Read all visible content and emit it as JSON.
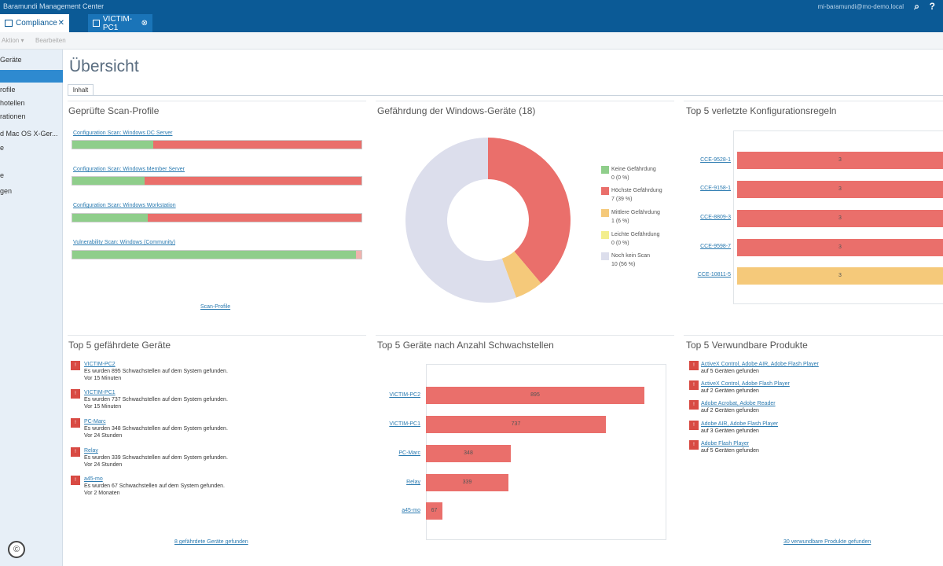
{
  "app": {
    "title": "Baramundi Management Center",
    "user": "mi-baramundi@mo-demo.local"
  },
  "tabs": [
    {
      "label": "Compliance",
      "close": "✕"
    },
    {
      "label": "VICTIM-PC1",
      "close": "⊗"
    }
  ],
  "toolbar": {
    "item1": "Aktion ▾",
    "item2": "Bearbeiten"
  },
  "sidebar": {
    "items": [
      "Geräte",
      "",
      "rofile",
      "hotellen",
      "rationen",
      "d Mac OS X-Ger...",
      "e",
      "",
      "e",
      "gen"
    ],
    "active_index": 1
  },
  "page": {
    "title": "Übersicht",
    "subtab": "Inhalt"
  },
  "scan_profiles": {
    "title": "Geprüfte Scan-Profile",
    "items": [
      {
        "name": "Configuration Scan: Windows DC Server",
        "ok_pct": 28,
        "bad_pct": 72,
        "nil_pct": 0
      },
      {
        "name": "Configuration Scan: Windows Member Server",
        "ok_pct": 25,
        "bad_pct": 75,
        "nil_pct": 0
      },
      {
        "name": "Configuration Scan: Windows Workstation",
        "ok_pct": 26,
        "bad_pct": 74,
        "nil_pct": 0
      },
      {
        "name": "Vulnerability Scan: Windows (Community)",
        "ok_pct": 98,
        "bad_pct": 0,
        "nil_pct": 2
      }
    ],
    "footer": "Scan-Profile"
  },
  "threat": {
    "title": "Gefährdung der Windows-Geräte (18)",
    "legend": [
      {
        "label": "Keine Gefährdung",
        "value": "0 (0 %)",
        "color": "#8fce8b"
      },
      {
        "label": "Höchste Gefährdung",
        "value": "7 (39 %)",
        "color": "#ea6f6b"
      },
      {
        "label": "Mittlere Gefährdung",
        "value": "1 (6 %)",
        "color": "#f5c97a"
      },
      {
        "label": "Leichte Gefährdung",
        "value": "0 (0 %)",
        "color": "#f3ee8d"
      },
      {
        "label": "Noch kein Scan",
        "value": "10 (56 %)",
        "color": "#dcdeec"
      }
    ]
  },
  "rules": {
    "title": "Top 5 verletzte Konfigurationsregeln",
    "items": [
      {
        "id": "CCE-9528-1",
        "value": "3",
        "color": "#ea6f6b"
      },
      {
        "id": "CCE-9158-1",
        "value": "3",
        "color": "#ea6f6b"
      },
      {
        "id": "CCE-8809-3",
        "value": "3",
        "color": "#ea6f6b"
      },
      {
        "id": "CCE-9598-7",
        "value": "3",
        "color": "#ea6f6b"
      },
      {
        "id": "CCE-10811-5",
        "value": "3",
        "color": "#f5c97a"
      }
    ]
  },
  "devices": {
    "title": "Top 5 gefährdete Geräte",
    "items": [
      {
        "name": "VICTIM-PC2",
        "desc": "Es wurden 895 Schwachstellen auf dem System gefunden.",
        "time": "Vor 15 Minuten"
      },
      {
        "name": "VICTIM-PC1",
        "desc": "Es wurden 737 Schwachstellen auf dem System gefunden.",
        "time": "Vor 15 Minuten"
      },
      {
        "name": "PC-Marc",
        "desc": "Es wurden 348 Schwachstellen auf dem System gefunden.",
        "time": "Vor 24 Stunden"
      },
      {
        "name": "Relay",
        "desc": "Es wurden 339 Schwachstellen auf dem System gefunden.",
        "time": "Vor 24 Stunden"
      },
      {
        "name": "a45-mo",
        "desc": "Es wurden 67 Schwachstellen auf dem System gefunden.",
        "time": "Vor 2 Monaten"
      }
    ],
    "footer": "8 gefährdete Geräte gefunden"
  },
  "vuln": {
    "title": "Top 5 Geräte nach Anzahl Schwachstellen",
    "max": 895,
    "items": [
      {
        "name": "VICTIM-PC2",
        "value": 895,
        "label": "895"
      },
      {
        "name": "VICTIM-PC1",
        "value": 737,
        "label": "737"
      },
      {
        "name": "PC-Marc",
        "value": 348,
        "label": "348"
      },
      {
        "name": "Relay",
        "value": 339,
        "label": "339"
      },
      {
        "name": "a45-mo",
        "value": 67,
        "label": "67"
      }
    ]
  },
  "products": {
    "title": "Top 5 Verwundbare Produkte",
    "items": [
      {
        "name": "ActiveX Control, Adobe AIR, Adobe Flash Player",
        "desc": "auf 5 Geräten gefunden"
      },
      {
        "name": "ActiveX Control, Adobe Flash Player",
        "desc": "auf 2 Geräten gefunden"
      },
      {
        "name": "Adobe Acrobat, Adobe Reader",
        "desc": "auf 2 Geräten gefunden"
      },
      {
        "name": "Adobe AIR, Adobe Flash Player",
        "desc": "auf 3 Geräten gefunden"
      },
      {
        "name": "Adobe Flash Player",
        "desc": "auf 5 Geräten gefunden"
      }
    ],
    "footer": "30 verwundbare Produkte gefunden"
  },
  "copyright": "©"
}
